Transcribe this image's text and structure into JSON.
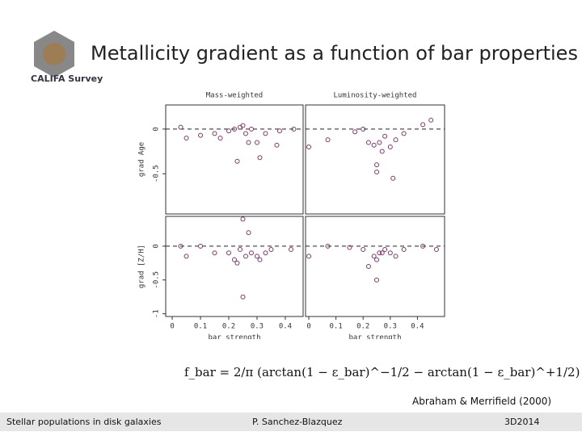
{
  "header": {
    "title": "Metallicity gradient as a function of bar properties",
    "logo": "CALIFA Survey"
  },
  "formula": "f_bar = 2/π (arctan(1 − ε_bar)^−1/2 − arctan(1 − ε_bar)^+1/2)",
  "citation": "Abraham & Merrifield (2000)",
  "footer": {
    "left": "Stellar populations in disk galaxies",
    "center": "P. Sanchez-Blazquez",
    "right": "3D2014"
  },
  "chart_data": [
    {
      "type": "scatter",
      "title": "Mass-weighted",
      "ylabel": "grad Age",
      "color": "#7a3a6a",
      "reference_line": 0,
      "x": [
        0.03,
        0.05,
        0.1,
        0.15,
        0.17,
        0.2,
        0.22,
        0.23,
        0.24,
        0.25,
        0.26,
        0.27,
        0.28,
        0.3,
        0.31,
        0.33,
        0.37,
        0.38,
        0.43
      ],
      "y": [
        0.02,
        -0.1,
        -0.07,
        -0.05,
        -0.1,
        -0.02,
        0.0,
        -0.36,
        0.02,
        0.04,
        -0.05,
        -0.15,
        0.0,
        -0.15,
        -0.32,
        -0.05,
        -0.18,
        -0.02,
        0.0
      ],
      "xlim": [
        -0.023,
        0.463
      ],
      "ylim": [
        -0.95,
        0.27
      ],
      "yticks": [
        0,
        -0.5
      ]
    },
    {
      "type": "scatter",
      "title": "Luminosity-weighted",
      "color": "#7a3a6a",
      "reference_line": 0,
      "x": [
        0.0,
        0.07,
        0.17,
        0.2,
        0.22,
        0.24,
        0.25,
        0.25,
        0.26,
        0.27,
        0.28,
        0.3,
        0.31,
        0.32,
        0.35,
        0.42,
        0.45
      ],
      "y": [
        -0.2,
        -0.12,
        -0.03,
        0.0,
        -0.15,
        -0.18,
        -0.4,
        -0.48,
        -0.15,
        -0.25,
        -0.08,
        -0.2,
        -0.55,
        -0.12,
        -0.05,
        0.05,
        0.1
      ],
      "xlim": [
        -0.012,
        0.5
      ],
      "ylim": [
        -0.95,
        0.27
      ]
    },
    {
      "type": "scatter",
      "ylabel": "grad [Z/H]",
      "xlabel": "bar strength",
      "color": "#7a3a6a",
      "reference_line": 0,
      "x": [
        0.03,
        0.05,
        0.1,
        0.15,
        0.2,
        0.22,
        0.23,
        0.24,
        0.25,
        0.25,
        0.26,
        0.27,
        0.28,
        0.3,
        0.31,
        0.33,
        0.35,
        0.42
      ],
      "y": [
        0.0,
        -0.15,
        0.0,
        -0.1,
        -0.1,
        -0.2,
        -0.25,
        -0.05,
        -0.75,
        0.4,
        -0.15,
        0.2,
        -0.1,
        -0.15,
        -0.2,
        -0.1,
        -0.05,
        -0.05
      ],
      "xlim": [
        -0.023,
        0.463
      ],
      "ylim": [
        -1.04,
        0.44
      ],
      "xticks": [
        0,
        0.1,
        0.2,
        0.3,
        0.4
      ],
      "yticks": [
        0,
        -0.5,
        -1
      ]
    },
    {
      "type": "scatter",
      "xlabel": "bar strength",
      "color": "#7a3a6a",
      "reference_line": 0,
      "x": [
        0.0,
        0.07,
        0.15,
        0.2,
        0.22,
        0.24,
        0.25,
        0.25,
        0.26,
        0.27,
        0.28,
        0.3,
        0.32,
        0.35,
        0.42,
        0.47
      ],
      "y": [
        -0.15,
        0.0,
        -0.02,
        -0.05,
        -0.3,
        -0.15,
        -0.2,
        -0.5,
        -0.1,
        -0.1,
        -0.05,
        -0.1,
        -0.15,
        -0.05,
        0.0,
        -0.05
      ],
      "xlim": [
        -0.012,
        0.5
      ],
      "ylim": [
        -1.04,
        0.44
      ],
      "xticks": [
        0,
        0.1,
        0.2,
        0.3,
        0.4
      ]
    }
  ]
}
